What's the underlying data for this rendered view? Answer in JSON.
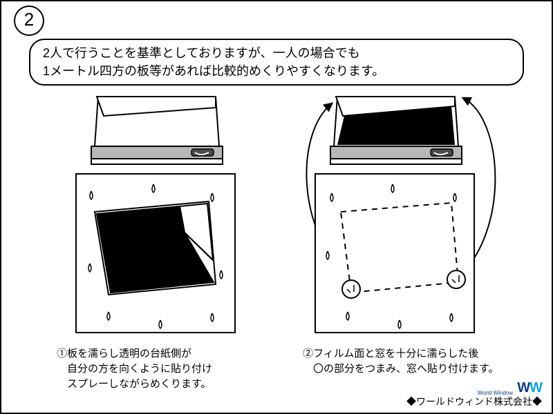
{
  "stepNumber": "2",
  "tip": "2人で行うことを基準としておりますが、一人の場合でも\n1メートル四方の板等があれば比較的めくりやすくなります。",
  "captions": {
    "left": "①板を濡らし透明の台紙側が\n　自分の方を向くように貼り付け\n　スプレーしながらめくります。",
    "right": "②フィルム面と窓を十分に濡らした後\n　〇の部分をつまみ、窓へ貼り付けます。"
  },
  "footer": "◆ワールドウィンド株式会社◆",
  "logoSub": "World Window",
  "colors": {
    "stroke": "#000000",
    "fill": "#000000",
    "gray": "#b8b8b8",
    "white": "#ffffff"
  }
}
